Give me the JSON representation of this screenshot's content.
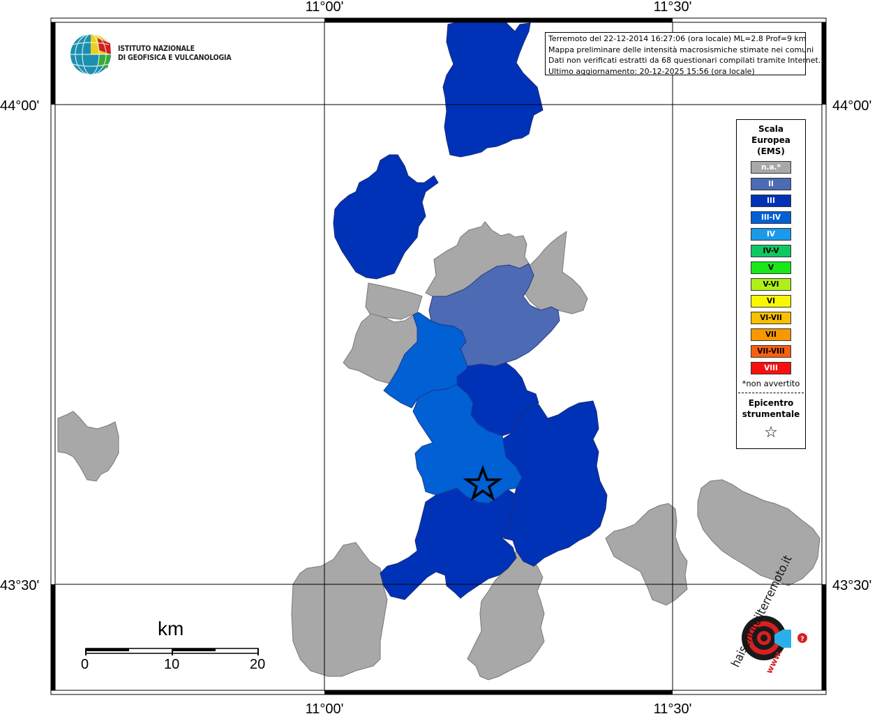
{
  "axis_labels": {
    "top": [
      "11°00'",
      "11°30'"
    ],
    "bottom": [
      "11°00'",
      "11°30'"
    ],
    "left": [
      "44°00'",
      "43°30'"
    ],
    "right": [
      "44°00'",
      "43°30'"
    ]
  },
  "institute": {
    "line1": "ISTITUTO NAZIONALE",
    "line2": "DI GEOFISICA E VULCANOLOGIA"
  },
  "info_box": {
    "line1": "Terremoto del 22-12-2014 16:27:06 (ora locale) ML=2.8 Prof=9 km",
    "line2": "Mappa preliminare delle intensità macrosismiche stimate nei comuni",
    "line3": "Dati non verificati estratti da 68 questionari compilati tramite Internet.",
    "line4": "Ultimo aggiornamento: 20-12-2025 15:56 (ora locale)"
  },
  "legend": {
    "title1": "Scala",
    "title2": "Europea",
    "title3": "(EMS)",
    "items": [
      {
        "label": "n.a.*",
        "color": "#a8a8a8"
      },
      {
        "label": "II",
        "color": "#4c6bb4"
      },
      {
        "label": "III",
        "color": "#0032b8"
      },
      {
        "label": "III-IV",
        "color": "#0060d4"
      },
      {
        "label": "IV",
        "color": "#1a9ae8"
      },
      {
        "label": "IV-V",
        "color": "#10c860"
      },
      {
        "label": "V",
        "color": "#18e818"
      },
      {
        "label": "V-VI",
        "color": "#b0f018"
      },
      {
        "label": "VI",
        "color": "#f8f800"
      },
      {
        "label": "VI-VII",
        "color": "#f8c000"
      },
      {
        "label": "VII",
        "color": "#f89800"
      },
      {
        "label": "VII-VIII",
        "color": "#f86010"
      },
      {
        "label": "VIII",
        "color": "#f81010"
      }
    ],
    "note": "*non avvertito",
    "epicenter1": "Epicentro",
    "epicenter2": "strumentale",
    "star": "☆"
  },
  "scale_bar": {
    "unit": "km",
    "labels": [
      "0",
      "10",
      "20"
    ]
  },
  "hsit_logo": {
    "text": "haisentitoilterremoto.it",
    "url": "www."
  },
  "colors": {
    "na": "#a8a8a8",
    "ii": "#4c6bb4",
    "iii": "#0032b8",
    "iii_iv": "#0060d4"
  }
}
